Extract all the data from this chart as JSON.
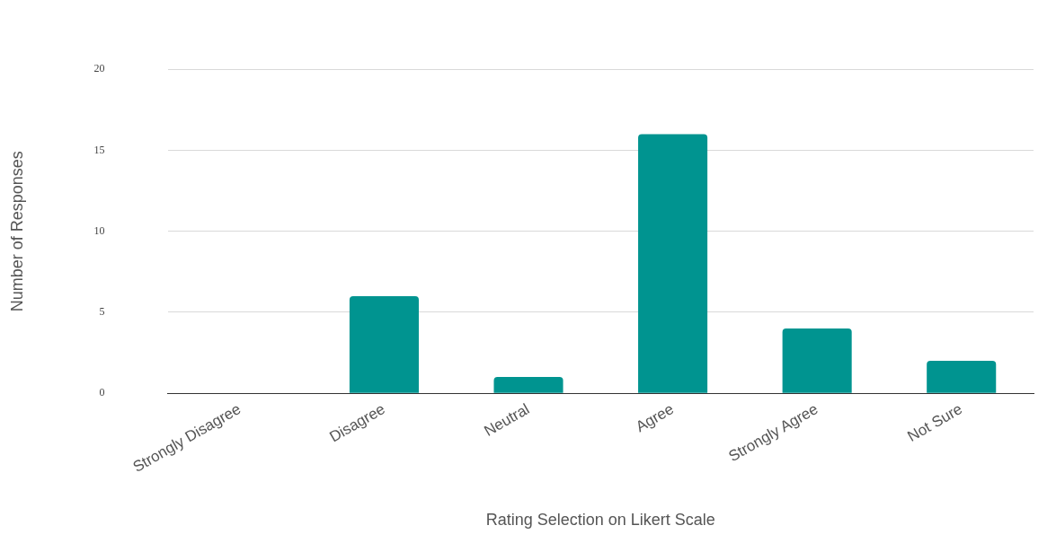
{
  "chart_data": {
    "type": "bar",
    "xlabel": "Rating Selection on Likert Scale",
    "ylabel": "Number of Responses",
    "categories": [
      "Strongly Disagree",
      "Disagree",
      "Neutral",
      "Agree",
      "Strongly Agree",
      "Not Sure"
    ],
    "values": [
      0,
      6,
      1,
      16,
      4,
      2
    ],
    "color": "#009490",
    "ylim": [
      0,
      20
    ],
    "yticks": [
      0,
      5,
      10,
      15,
      20
    ],
    "grid": "y",
    "legend": false
  }
}
